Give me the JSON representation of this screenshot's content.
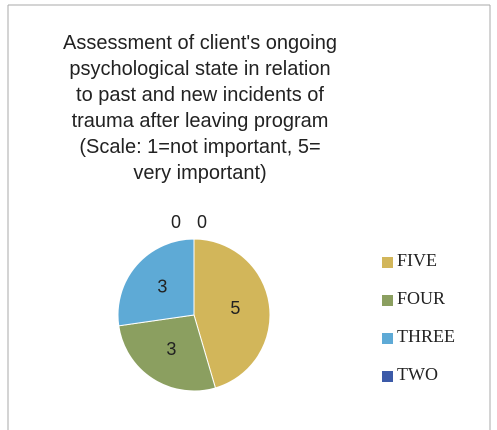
{
  "chart_data": {
    "type": "pie",
    "title": "Assessment of client's ongoing\npsychological state in relation\nto past and new incidents of\ntrauma after leaving program\n(Scale: 1=not important, 5=\nvery important)",
    "categories": [
      "FIVE",
      "FOUR",
      "THREE",
      "TWO",
      null
    ],
    "values": [
      5,
      3,
      3,
      0,
      0
    ],
    "colors": [
      "#d2b65a",
      "#8b9f60",
      "#5eaad6",
      "#3c5aa8",
      "#8a4a9a"
    ],
    "legend": "right"
  }
}
